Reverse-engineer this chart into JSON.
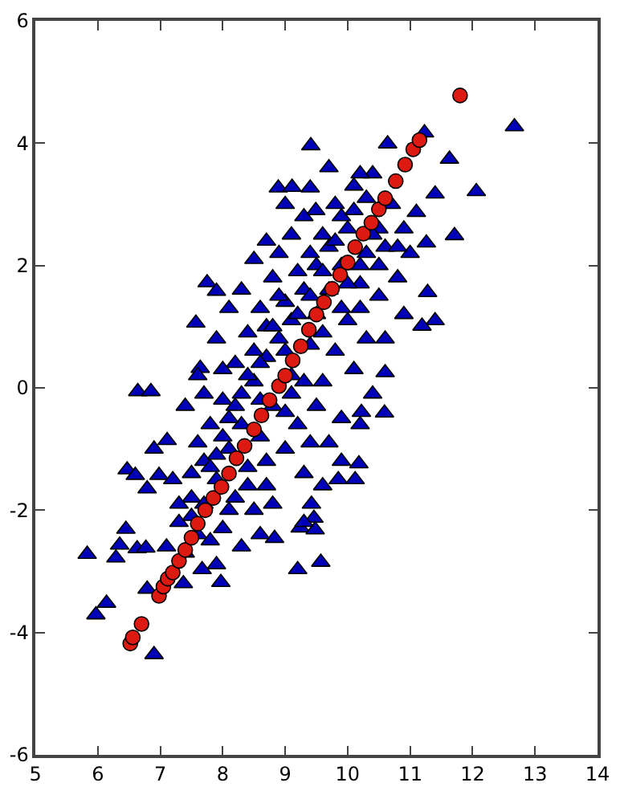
{
  "chart_data": {
    "type": "scatter",
    "xlim": [
      5,
      14
    ],
    "ylim": [
      -6,
      6
    ],
    "xticks": [
      5,
      6,
      7,
      8,
      9,
      10,
      11,
      12,
      13,
      14
    ],
    "yticks": [
      -6,
      -4,
      -2,
      0,
      2,
      4,
      6
    ],
    "series": [
      {
        "color": "#0000b8",
        "marker": "triangle",
        "x": [
          12.67,
          9.41,
          10.64,
          11.23,
          11.63,
          12.06,
          11.71,
          8.89,
          9.11,
          9.4,
          9.49,
          7.75,
          7.9,
          7.57,
          7.64,
          6.64,
          6.85,
          11.4,
          11.1,
          11.26,
          11.4,
          11.19,
          11.28,
          10.6,
          5.83,
          5.97,
          6.14,
          6.9,
          6.45,
          6.35,
          6.29,
          6.63,
          6.77,
          6.79,
          6.47,
          6.6,
          6.79,
          6.98,
          6.9,
          7.11,
          9.2,
          9.57,
          9.46,
          9.42,
          9.85,
          10.12,
          10.18,
          10.59,
          10.22,
          7.67,
          7.97,
          7.37,
          7.9,
          8.83,
          9.24,
          9.48,
          7.3,
          7.5,
          7.6,
          7.7,
          7.8,
          7.9,
          8.0,
          8.0,
          8.1,
          8.2,
          8.2,
          8.3,
          8.4,
          8.4,
          8.5,
          8.5,
          8.6,
          8.6,
          8.7,
          8.7,
          8.8,
          8.8,
          8.9,
          8.9,
          9.0,
          9.0,
          9.1,
          9.1,
          9.2,
          9.2,
          9.3,
          9.3,
          9.4,
          9.4,
          9.5,
          9.5,
          9.6,
          9.6,
          9.7,
          9.7,
          9.8,
          9.8,
          9.9,
          9.9,
          10.0,
          10.0,
          10.1,
          10.1,
          10.2,
          10.3,
          10.3,
          10.4,
          10.5,
          10.6,
          10.7,
          10.8,
          10.9,
          7.4,
          7.2,
          7.6,
          7.9,
          8.1,
          8.3,
          8.5,
          8.7,
          9.0,
          9.6,
          9.9,
          10.2,
          10.4,
          8.3,
          8.6,
          7.1,
          7.4,
          8.8,
          9.3,
          10.6,
          10.9,
          11.0,
          9.7,
          10.2,
          8.6,
          9.1,
          9.4,
          8.0,
          7.7,
          7.5,
          7.7,
          7.9,
          8.1,
          8.3,
          8.5,
          8.7,
          8.9,
          9.1,
          9.3,
          9.5,
          9.7,
          9.9,
          10.1,
          10.3,
          10.5,
          7.6,
          7.8,
          8.0,
          8.2,
          8.4,
          8.6,
          8.8,
          9.0,
          9.2,
          9.4,
          9.6,
          9.8,
          10.0,
          10.2,
          10.4,
          7.3,
          7.5,
          7.8,
          8.1,
          8.4,
          8.7,
          9.0,
          9.3,
          9.6,
          9.9,
          10.2,
          10.5,
          10.8
        ],
        "values": [
          4.27,
          3.96,
          3.99,
          4.17,
          3.74,
          3.21,
          2.49,
          3.27,
          3.28,
          3.27,
          2.9,
          1.72,
          1.58,
          1.06,
          0.32,
          -0.06,
          -0.06,
          3.17,
          2.87,
          2.37,
          1.1,
          1.01,
          1.56,
          0.25,
          -2.72,
          -3.71,
          -3.52,
          -4.36,
          -2.31,
          -2.57,
          -2.78,
          -2.63,
          -2.62,
          -3.29,
          -1.34,
          -1.43,
          -1.65,
          -1.43,
          -1.0,
          -0.86,
          -2.97,
          -2.85,
          -2.13,
          -1.9,
          -1.5,
          -1.5,
          -1.24,
          -0.41,
          -0.4,
          -2.97,
          -3.18,
          -3.2,
          -2.89,
          -2.46,
          -2.29,
          -2.32,
          -2.2,
          -1.8,
          -2.4,
          -1.2,
          -0.6,
          -1.5,
          -2.3,
          -0.2,
          -1.0,
          0.4,
          -1.8,
          -0.6,
          0.9,
          -1.3,
          0.1,
          -2.0,
          1.3,
          -0.8,
          0.5,
          -1.6,
          1.8,
          -0.3,
          2.2,
          0.8,
          -1.0,
          1.4,
          2.5,
          0.2,
          -0.6,
          1.9,
          2.8,
          -1.4,
          0.7,
          2.2,
          1.2,
          -0.3,
          2.5,
          0.1,
          1.6,
          -0.9,
          3.0,
          0.6,
          2.0,
          -0.5,
          1.1,
          2.6,
          0.3,
          3.3,
          1.7,
          2.2,
          0.8,
          3.5,
          1.5,
          2.3,
          3.0,
          1.8,
          2.6,
          -0.3,
          -1.5,
          0.2,
          0.8,
          1.3,
          1.6,
          2.1,
          2.4,
          3.0,
          -1.6,
          -1.2,
          -0.6,
          -0.1,
          -2.6,
          -2.4,
          -2.6,
          -2.7,
          -1.9,
          -2.2,
          0.8,
          1.2,
          2.2,
          3.6,
          3.5,
          -0.2,
          -0.1,
          -0.9,
          0.3,
          -0.1,
          -1.4,
          -1.9,
          -1.1,
          -0.5,
          -0.1,
          0.6,
          1.0,
          1.5,
          1.1,
          1.6,
          2.0,
          2.3,
          2.8,
          2.9,
          3.1,
          2.6,
          -0.9,
          -1.3,
          -0.8,
          -0.3,
          0.2,
          0.4,
          1.0,
          0.6,
          1.2,
          1.5,
          1.9,
          2.4,
          1.7,
          2.0,
          2.5,
          -1.9,
          -2.1,
          -2.5,
          -2.0,
          -1.6,
          -1.2,
          -0.4,
          0.1,
          0.9,
          1.3,
          1.3,
          2.0,
          2.3
        ]
      },
      {
        "color": "#dd1a12",
        "marker": "circle",
        "x": [
          6.52,
          6.56,
          6.7,
          6.98,
          7.05,
          7.12,
          7.2,
          7.3,
          7.4,
          7.5,
          7.6,
          7.72,
          7.85,
          7.98,
          8.1,
          8.22,
          8.35,
          8.5,
          8.62,
          8.75,
          8.9,
          9.0,
          9.12,
          9.25,
          9.38,
          9.5,
          9.62,
          9.75,
          9.88,
          10.0,
          10.12,
          10.25,
          10.38,
          10.5,
          10.6,
          10.77,
          10.92,
          11.05,
          11.15,
          11.8
        ],
        "values": [
          -4.18,
          -4.08,
          -3.86,
          -3.4,
          -3.25,
          -3.12,
          -3.02,
          -2.83,
          -2.65,
          -2.45,
          -2.22,
          -2.0,
          -1.8,
          -1.62,
          -1.4,
          -1.15,
          -0.95,
          -0.68,
          -0.45,
          -0.2,
          0.03,
          0.2,
          0.45,
          0.68,
          0.95,
          1.2,
          1.4,
          1.62,
          1.85,
          2.05,
          2.3,
          2.52,
          2.7,
          2.92,
          3.1,
          3.38,
          3.65,
          3.9,
          4.05,
          4.78
        ]
      }
    ]
  }
}
